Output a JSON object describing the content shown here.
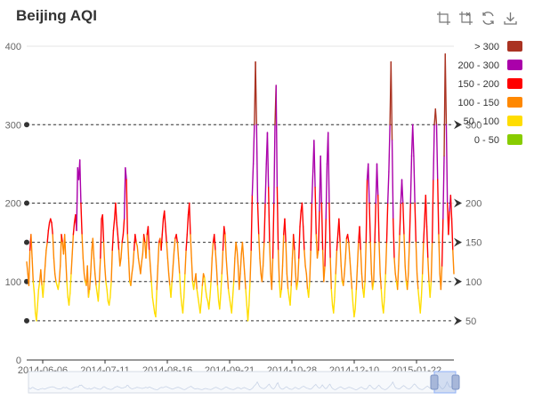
{
  "title": "Beijing AQI",
  "toolbox": [
    {
      "name": "zoom-icon"
    },
    {
      "name": "zoom-reset-icon"
    },
    {
      "name": "restore-icon"
    },
    {
      "name": "save-image-icon"
    }
  ],
  "chart_data": {
    "type": "line",
    "title": "Beijing AQI",
    "xlabel": "",
    "ylabel": "",
    "ylim": [
      0,
      400
    ],
    "y_ticks": [
      "0",
      "100",
      "200",
      "300",
      "400"
    ],
    "x_tick_labels": [
      "2014-06-06",
      "2014-07-11",
      "2014-08-16",
      "2014-09-21",
      "2014-10-28",
      "2014-12-10",
      "2015-01-22"
    ],
    "mark_lines": [
      50,
      100,
      150,
      200,
      300
    ],
    "visual_pieces": [
      {
        "label": "> 300",
        "min": 300,
        "color": "#aa3322"
      },
      {
        "label": "200 - 300",
        "min": 200,
        "max": 300,
        "color": "#aa00aa"
      },
      {
        "label": "150 - 200",
        "min": 150,
        "max": 200,
        "color": "#ff0000"
      },
      {
        "label": "100 - 150",
        "min": 100,
        "max": 150,
        "color": "#ff8800"
      },
      {
        "label": "50 - 100",
        "min": 50,
        "max": 100,
        "color": "#ffdd00"
      },
      {
        "label": "0 - 50",
        "min": 0,
        "max": 50,
        "color": "#88cc00"
      }
    ],
    "series": [
      {
        "values": [
          125,
          110,
          95,
          140,
          160,
          130,
          100,
          85,
          60,
          50,
          70,
          90,
          100,
          115,
          95,
          80,
          100,
          120,
          140,
          150,
          165,
          175,
          180,
          175,
          160,
          130,
          110,
          100,
          95,
          90,
          100,
          120,
          160,
          150,
          135,
          160,
          130,
          100,
          80,
          70,
          85,
          110,
          135,
          160,
          175,
          185,
          165,
          245,
          230,
          255,
          200,
          160,
          130,
          110,
          100,
          95,
          120,
          80,
          90,
          110,
          140,
          155,
          130,
          110,
          95,
          85,
          75,
          100,
          130,
          180,
          185,
          150,
          120,
          100,
          90,
          75,
          70,
          80,
          100,
          140,
          165,
          180,
          200,
          175,
          160,
          140,
          120,
          130,
          150,
          160,
          180,
          245,
          230,
          160,
          130,
          100,
          95,
          110,
          120,
          140,
          160,
          150,
          145,
          130,
          120,
          110,
          125,
          135,
          160,
          150,
          130,
          160,
          170,
          140,
          120,
          100,
          80,
          70,
          60,
          55,
          90,
          120,
          150,
          155,
          140,
          160,
          180,
          190,
          170,
          150,
          130,
          110,
          95,
          80,
          100,
          120,
          140,
          155,
          160,
          150,
          130,
          110,
          85,
          70,
          60,
          80,
          110,
          140,
          160,
          185,
          200,
          160,
          130,
          100,
          90,
          100,
          110,
          90,
          80,
          70,
          60,
          75,
          95,
          110,
          105,
          90,
          80,
          75,
          65,
          80,
          100,
          130,
          150,
          160,
          140,
          120,
          95,
          75,
          65,
          85,
          110,
          140,
          170,
          160,
          130,
          110,
          90,
          80,
          70,
          60,
          80,
          100,
          130,
          150,
          140,
          120,
          90,
          110,
          135,
          150,
          130,
          110,
          90,
          70,
          50,
          70,
          100,
          140,
          210,
          250,
          300,
          380,
          300,
          200,
          160,
          130,
          110,
          100,
          120,
          150,
          200,
          250,
          290,
          220,
          150,
          110,
          90,
          130,
          200,
          300,
          350,
          220,
          140,
          100,
          80,
          90,
          120,
          160,
          180,
          150,
          110,
          90,
          80,
          70,
          95,
          130,
          160,
          140,
          110,
          90,
          100,
          130,
          170,
          190,
          200,
          170,
          140,
          120,
          110,
          90,
          80,
          100,
          140,
          200,
          240,
          280,
          220,
          160,
          130,
          140,
          190,
          260,
          200,
          140,
          100,
          120,
          180,
          250,
          290,
          200,
          130,
          90,
          70,
          60,
          80,
          110,
          140,
          160,
          180,
          150,
          120,
          100,
          95,
          110,
          130,
          155,
          160,
          150,
          130,
          110,
          90,
          70,
          55,
          65,
          90,
          120,
          150,
          170,
          140,
          110,
          90,
          80,
          100,
          150,
          230,
          250,
          200,
          150,
          110,
          90,
          100,
          150,
          200,
          250,
          210,
          150,
          110,
          90,
          70,
          60,
          80,
          110,
          150,
          200,
          240,
          300,
          380,
          280,
          180,
          130,
          110,
          100,
          90,
          120,
          160,
          200,
          230,
          200,
          160,
          120,
          100,
          90,
          110,
          150,
          200,
          260,
          300,
          260,
          200,
          150,
          110,
          90,
          75,
          60,
          80,
          110,
          150,
          180,
          210,
          170,
          130,
          100,
          80,
          100,
          150,
          230,
          300,
          320,
          300,
          230,
          160,
          110,
          90,
          120,
          180,
          260,
          390,
          300,
          200,
          160,
          190,
          210,
          180,
          140,
          110
        ]
      }
    ],
    "data_zoom": {
      "start_pct": 95,
      "end_pct": 100
    }
  }
}
